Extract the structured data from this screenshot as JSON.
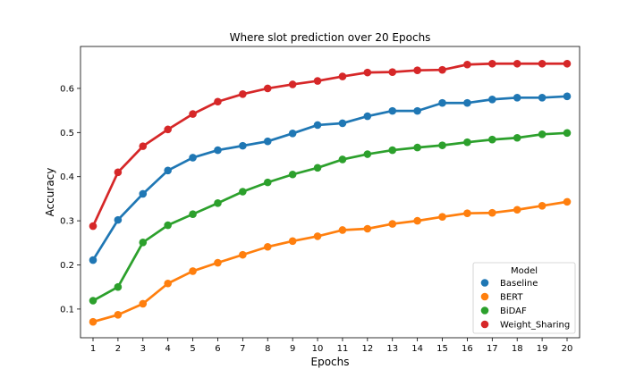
{
  "chart_data": {
    "type": "line",
    "title": "Where slot prediction over 20 Epochs",
    "xlabel": "Epochs",
    "ylabel": "Accuracy",
    "categories": [
      "1",
      "2",
      "3",
      "4",
      "5",
      "6",
      "7",
      "8",
      "9",
      "10",
      "11",
      "12",
      "13",
      "14",
      "15",
      "16",
      "17",
      "18",
      "19",
      "20"
    ],
    "y_ticks": [
      "0.1",
      "0.2",
      "0.3",
      "0.4",
      "0.5",
      "0.6"
    ],
    "ylim": [
      0.035,
      0.695
    ],
    "grid": false,
    "legend": {
      "title": "Model",
      "placement": "lower-right"
    },
    "series": [
      {
        "name": "Baseline",
        "color": "#1f77b4",
        "values": [
          0.211,
          0.302,
          0.361,
          0.414,
          0.443,
          0.46,
          0.47,
          0.48,
          0.498,
          0.517,
          0.521,
          0.537,
          0.549,
          0.549,
          0.567,
          0.567,
          0.575,
          0.579,
          0.579,
          0.582
        ]
      },
      {
        "name": "BERT",
        "color": "#ff7f0e",
        "values": [
          0.071,
          0.087,
          0.112,
          0.158,
          0.186,
          0.205,
          0.223,
          0.241,
          0.254,
          0.265,
          0.279,
          0.282,
          0.293,
          0.3,
          0.309,
          0.317,
          0.318,
          0.325,
          0.334,
          0.343
        ]
      },
      {
        "name": "BiDAF",
        "color": "#2ca02c",
        "values": [
          0.119,
          0.15,
          0.251,
          0.29,
          0.315,
          0.34,
          0.366,
          0.387,
          0.405,
          0.42,
          0.439,
          0.451,
          0.46,
          0.466,
          0.471,
          0.478,
          0.484,
          0.488,
          0.496,
          0.499
        ]
      },
      {
        "name": "Weight_Sharing",
        "color": "#d62728",
        "values": [
          0.288,
          0.41,
          0.469,
          0.507,
          0.542,
          0.57,
          0.587,
          0.6,
          0.609,
          0.617,
          0.627,
          0.636,
          0.637,
          0.641,
          0.642,
          0.654,
          0.656,
          0.656,
          0.656,
          0.656
        ]
      }
    ]
  }
}
